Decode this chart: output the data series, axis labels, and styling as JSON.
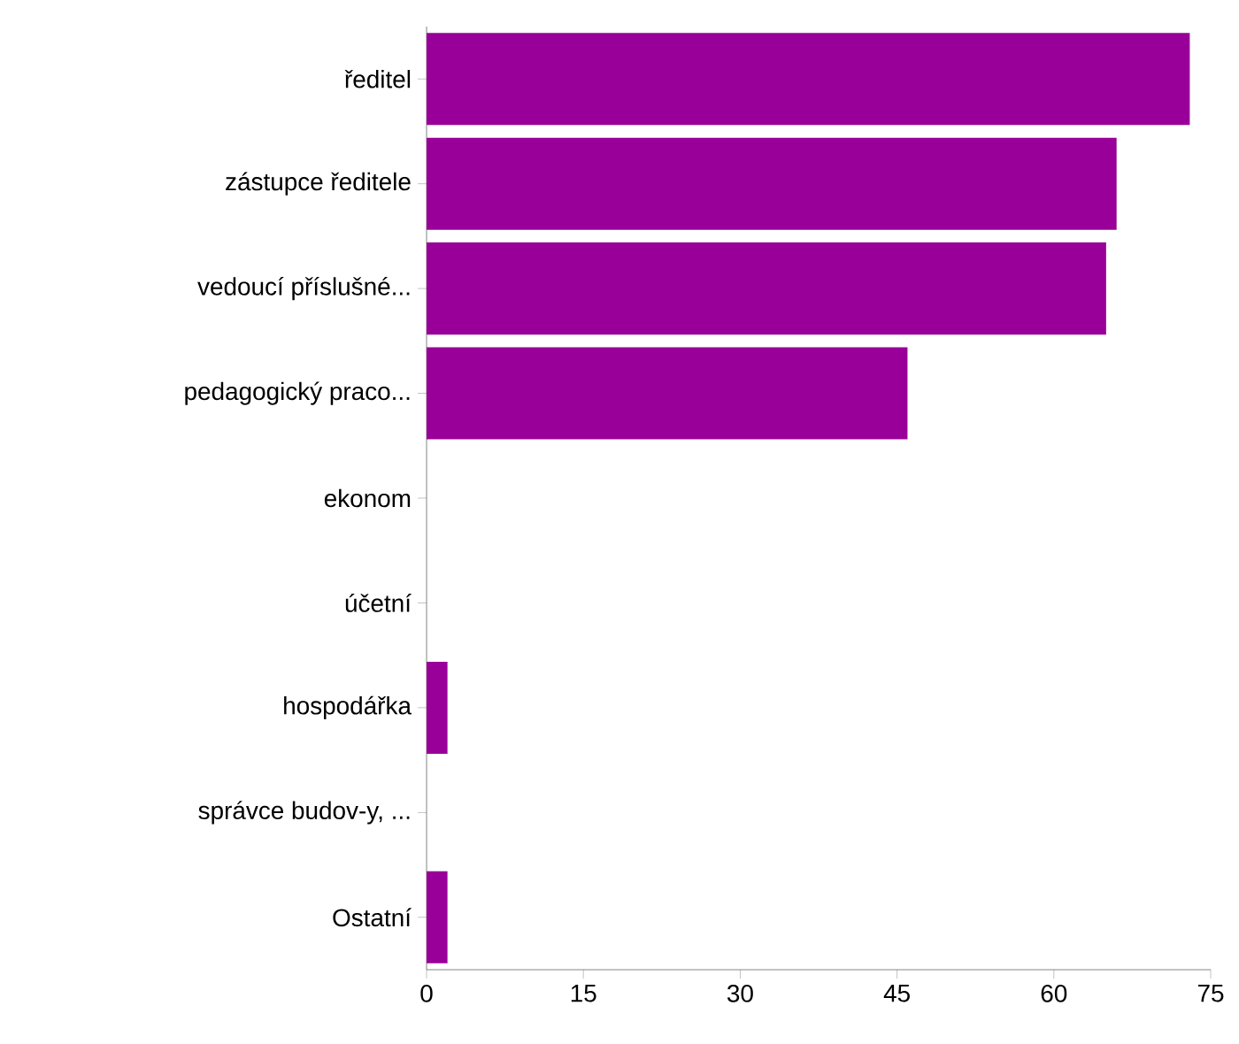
{
  "chart_data": {
    "type": "bar",
    "orientation": "horizontal",
    "categories": [
      "ředitel",
      "zástupce ředitele",
      "vedoucí příslušné...",
      "pedagogický praco...",
      "ekonom",
      "účetní",
      "hospodářka",
      "správce budov-y, ...",
      "Ostatní"
    ],
    "values": [
      73,
      66,
      65,
      46,
      0,
      0,
      2,
      0,
      2
    ],
    "color": "#990099",
    "xlim": [
      0,
      75
    ],
    "xticks": [
      0,
      15,
      30,
      45,
      60,
      75
    ]
  }
}
